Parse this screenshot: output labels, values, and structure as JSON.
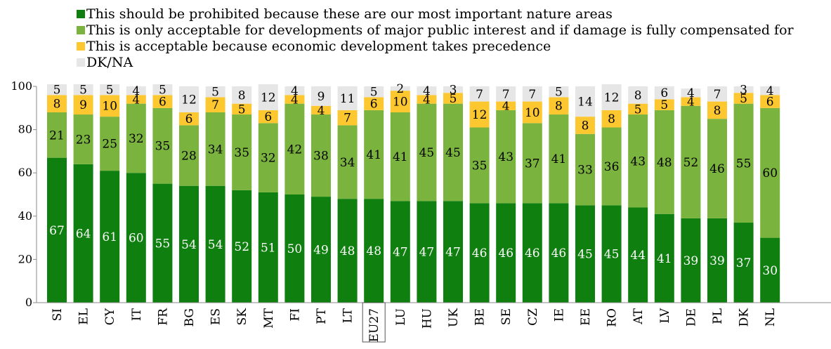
{
  "chart_data": {
    "type": "bar",
    "stacked": true,
    "categories": [
      "SI",
      "EL",
      "CY",
      "IT",
      "FR",
      "BG",
      "ES",
      "SK",
      "MT",
      "FI",
      "PT",
      "LT",
      "EU27",
      "LU",
      "HU",
      "UK",
      "BE",
      "SE",
      "CZ",
      "IE",
      "EE",
      "RO",
      "AT",
      "LV",
      "DE",
      "PL",
      "DK",
      "NL"
    ],
    "highlighted_category": "EU27",
    "series": [
      {
        "name": "This should be prohibited because these are our most important nature areas",
        "color": "#0f7f0f",
        "label_color": "#ffffff",
        "values": [
          67,
          64,
          61,
          60,
          55,
          54,
          54,
          52,
          51,
          50,
          49,
          48,
          48,
          47,
          47,
          47,
          46,
          46,
          46,
          46,
          45,
          45,
          44,
          41,
          39,
          39,
          37,
          30
        ]
      },
      {
        "name": "This is only acceptable for developments of major public interest and if damage is fully compensated for",
        "color": "#7ab33e",
        "label_color": "#000000",
        "values": [
          21,
          23,
          25,
          32,
          35,
          28,
          34,
          35,
          32,
          42,
          38,
          34,
          41,
          41,
          45,
          45,
          35,
          43,
          37,
          41,
          33,
          36,
          43,
          48,
          52,
          46,
          55,
          60
        ]
      },
      {
        "name": "This is acceptable because economic development takes precedence",
        "color": "#fdc82f",
        "label_color": "#000000",
        "values": [
          8,
          9,
          10,
          4,
          6,
          6,
          7,
          5,
          6,
          4,
          4,
          7,
          6,
          10,
          4,
          5,
          12,
          4,
          10,
          8,
          8,
          8,
          5,
          5,
          4,
          8,
          5,
          6
        ]
      },
      {
        "name": "DK/NA",
        "color": "#e6e6e6",
        "label_color": "#000000",
        "values": [
          5,
          5,
          5,
          4,
          5,
          12,
          5,
          8,
          12,
          4,
          9,
          11,
          5,
          2,
          4,
          3,
          7,
          7,
          7,
          5,
          14,
          12,
          8,
          6,
          4,
          7,
          3,
          4
        ]
      }
    ],
    "ylim": [
      0,
      100
    ],
    "yticks": [
      "0",
      "20",
      "40",
      "60",
      "80",
      "100"
    ],
    "grid": false,
    "legend_position": "top"
  }
}
